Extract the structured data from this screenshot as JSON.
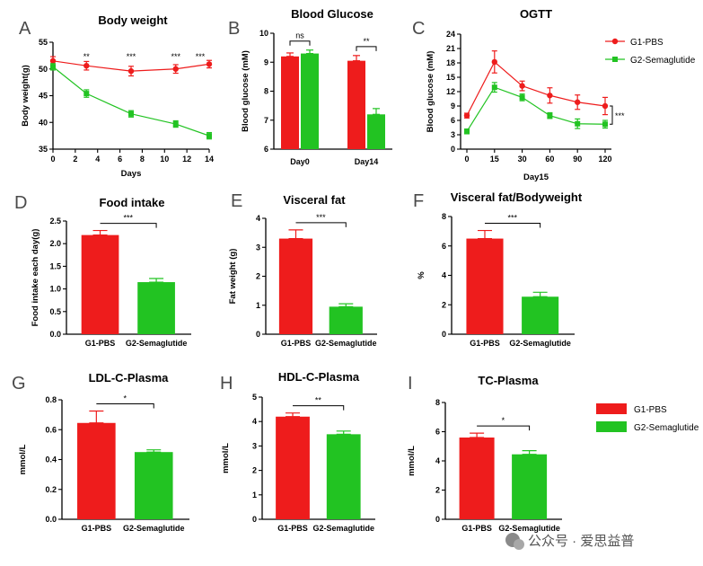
{
  "colors": {
    "g1": "#ee1c1c",
    "g2": "#22c322",
    "axis": "#000000",
    "watermark": "#5a5a5a"
  },
  "legend_top": {
    "items": [
      {
        "label": "G1-PBS",
        "color": "#ee1c1c"
      },
      {
        "label": "G2-Semaglutide",
        "color": "#22c322"
      }
    ]
  },
  "legend_bottom": {
    "items": [
      {
        "label": "G1-PBS",
        "color": "#ee1c1c"
      },
      {
        "label": "G2-Semaglutide",
        "color": "#22c322"
      }
    ]
  },
  "watermark": {
    "text": "公众号 · 爱思益普"
  },
  "chart_data": [
    {
      "id": "A",
      "letter": "A",
      "type": "line",
      "title": "Body weight",
      "xlabel": "Days",
      "ylabel": "Body weight(g)",
      "xlim": [
        0,
        14
      ],
      "xticks": [
        0,
        2,
        4,
        6,
        8,
        10,
        12,
        14
      ],
      "ylim": [
        35,
        55
      ],
      "yticks": [
        35,
        40,
        45,
        50,
        55
      ],
      "series": [
        {
          "name": "G1-PBS",
          "color": "#ee1c1c",
          "marker": "circle",
          "x": [
            0,
            3,
            7,
            11,
            14
          ],
          "y": [
            51.5,
            50.6,
            49.6,
            50.0,
            50.9
          ],
          "err": [
            0.8,
            0.8,
            0.9,
            0.8,
            0.7
          ]
        },
        {
          "name": "G2-Semaglutide",
          "color": "#22c322",
          "marker": "square",
          "x": [
            0,
            3,
            7,
            11,
            14
          ],
          "y": [
            50.4,
            45.4,
            41.6,
            39.7,
            37.5
          ],
          "err": [
            0.6,
            0.7,
            0.6,
            0.6,
            0.6
          ]
        }
      ],
      "annotations": [
        {
          "x": 3,
          "text": "**"
        },
        {
          "x": 7,
          "text": "***"
        },
        {
          "x": 11,
          "text": "***"
        },
        {
          "x": 14,
          "text": "***"
        }
      ]
    },
    {
      "id": "B",
      "letter": "B",
      "type": "bar",
      "title": "Blood Glucose",
      "xlabel": "",
      "ylabel": "Blood glucose (mM)",
      "categories": [
        "Day0",
        "Day14"
      ],
      "ylim": [
        6,
        10
      ],
      "yticks": [
        6,
        7,
        8,
        9,
        10
      ],
      "series": [
        {
          "name": "G1-PBS",
          "color": "#ee1c1c",
          "values": [
            9.2,
            9.05
          ],
          "err": [
            0.12,
            0.18
          ]
        },
        {
          "name": "G2-Semaglutide",
          "color": "#22c322",
          "values": [
            9.3,
            7.2
          ],
          "err": [
            0.12,
            0.2
          ]
        }
      ],
      "annotations": [
        {
          "category": 0,
          "text": "ns"
        },
        {
          "category": 1,
          "text": "**"
        }
      ]
    },
    {
      "id": "C",
      "letter": "C",
      "type": "line",
      "title": "OGTT",
      "xlabel": "Day15",
      "ylabel": "Blood glucose (mM)",
      "xcategories": [
        "0",
        "15",
        "30",
        "60",
        "90",
        "120"
      ],
      "ylim": [
        0,
        24
      ],
      "yticks": [
        0,
        3,
        6,
        9,
        12,
        15,
        18,
        21,
        24
      ],
      "series": [
        {
          "name": "G1-PBS",
          "color": "#ee1c1c",
          "marker": "circle",
          "y": [
            7.0,
            18.2,
            13.2,
            11.2,
            9.8,
            9.0
          ],
          "err": [
            0.5,
            2.3,
            1.0,
            1.6,
            1.5,
            1.8
          ]
        },
        {
          "name": "G2-Semaglutide",
          "color": "#22c322",
          "marker": "square",
          "y": [
            3.7,
            12.9,
            10.8,
            7.0,
            5.3,
            5.2
          ],
          "err": [
            0.5,
            1.0,
            0.7,
            0.6,
            1.0,
            0.8
          ]
        }
      ],
      "annotations": [
        {
          "text": "***"
        }
      ]
    },
    {
      "id": "D",
      "letter": "D",
      "type": "bar",
      "title": "Food intake",
      "xlabel": "",
      "ylabel": "Food intake each day(g)",
      "categories": [
        "G1-PBS",
        "G2-Semaglutide"
      ],
      "ylim": [
        0,
        2.5
      ],
      "yticks": [
        "0.0",
        "0.5",
        "1.0",
        "1.5",
        "2.0",
        "2.5"
      ],
      "values": [
        2.19,
        1.15
      ],
      "err": [
        0.1,
        0.08
      ],
      "annotations": [
        {
          "text": "***"
        }
      ]
    },
    {
      "id": "E",
      "letter": "E",
      "type": "bar",
      "title": "Visceral fat",
      "xlabel": "",
      "ylabel": "Fat weight (g)",
      "categories": [
        "G1-PBS",
        "G2-Semaglutide"
      ],
      "ylim": [
        0,
        4
      ],
      "yticks": [
        "0",
        "1",
        "2",
        "3",
        "4"
      ],
      "values": [
        3.3,
        0.95
      ],
      "err": [
        0.3,
        0.1
      ],
      "annotations": [
        {
          "text": "***"
        }
      ]
    },
    {
      "id": "F",
      "letter": "F",
      "type": "bar",
      "title": "Visceral fat/Bodyweight",
      "xlabel": "",
      "ylabel": "%",
      "categories": [
        "G1-PBS",
        "G2-Semaglutide"
      ],
      "ylim": [
        0,
        8
      ],
      "yticks": [
        "0",
        "2",
        "4",
        "6",
        "8"
      ],
      "values": [
        6.5,
        2.55
      ],
      "err": [
        0.55,
        0.3
      ],
      "annotations": [
        {
          "text": "***"
        }
      ]
    },
    {
      "id": "G",
      "letter": "G",
      "type": "bar",
      "title": "LDL-C-Plasma",
      "xlabel": "",
      "ylabel": "mmol/L",
      "categories": [
        "G1-PBS",
        "G2-Semaglutide"
      ],
      "ylim": [
        0,
        0.8
      ],
      "yticks": [
        "0.0",
        "0.2",
        "0.4",
        "0.6",
        "0.8"
      ],
      "values": [
        0.645,
        0.45
      ],
      "err": [
        0.08,
        0.015
      ],
      "annotations": [
        {
          "text": "*"
        }
      ]
    },
    {
      "id": "H",
      "letter": "H",
      "type": "bar",
      "title": "HDL-C-Plasma",
      "xlabel": "",
      "ylabel": "mmol/L",
      "categories": [
        "G1-PBS",
        "G2-Semaglutide"
      ],
      "ylim": [
        0,
        5
      ],
      "yticks": [
        "0",
        "1",
        "2",
        "3",
        "4",
        "5"
      ],
      "values": [
        4.2,
        3.48
      ],
      "err": [
        0.15,
        0.13
      ],
      "annotations": [
        {
          "text": "**"
        }
      ]
    },
    {
      "id": "I",
      "letter": "I",
      "type": "bar",
      "title": "TC-Plasma",
      "xlabel": "",
      "ylabel": "mmol/L",
      "categories": [
        "G1-PBS",
        "G2-Semaglutide"
      ],
      "ylim": [
        0,
        8
      ],
      "yticks": [
        "0",
        "2",
        "4",
        "6",
        "8"
      ],
      "values": [
        5.6,
        4.45
      ],
      "err": [
        0.3,
        0.25
      ],
      "annotations": [
        {
          "text": "*"
        }
      ]
    }
  ]
}
